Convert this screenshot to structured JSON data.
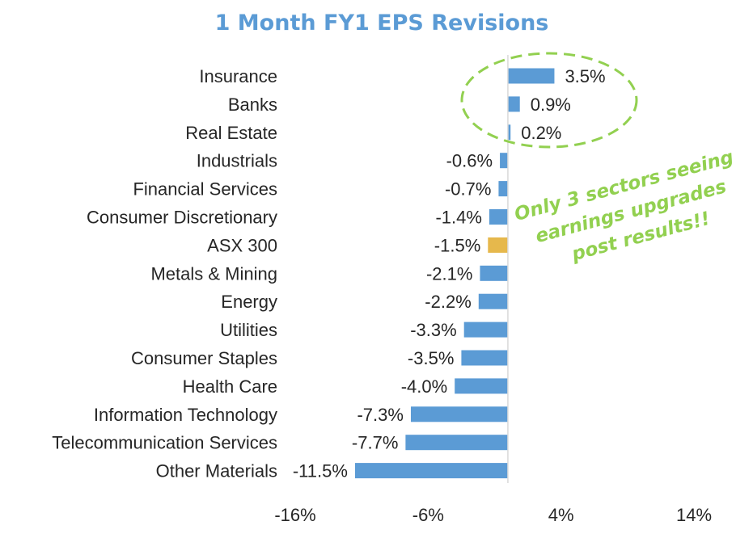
{
  "chart_data": {
    "type": "bar",
    "orientation": "horizontal",
    "title": "1 Month FY1 EPS Revisions",
    "categories": [
      "Insurance",
      "Banks",
      "Real Estate",
      "Industrials",
      "Financial Services",
      "Consumer Discretionary",
      "ASX 300",
      "Metals & Mining",
      "Energy",
      "Utilities",
      "Consumer Staples",
      "Health Care",
      "Information Technology",
      "Telecommunication Services",
      "Other Materials"
    ],
    "values": [
      3.5,
      0.9,
      0.2,
      -0.6,
      -0.7,
      -1.4,
      -1.5,
      -2.1,
      -2.2,
      -3.3,
      -3.5,
      -4.0,
      -7.3,
      -7.7,
      -11.5
    ],
    "data_labels": [
      "3.5%",
      "0.9%",
      "0.2%",
      "-0.6%",
      "-0.7%",
      "-1.4%",
      "-1.5%",
      "-2.1%",
      "-2.2%",
      "-3.3%",
      "-3.5%",
      "-4.0%",
      "-7.3%",
      "-7.7%",
      "-11.5%"
    ],
    "highlight_category": "ASX 300",
    "xlim": [
      -16,
      14
    ],
    "xticks": [
      -16,
      -6,
      4,
      14
    ],
    "xtick_labels": [
      "-16%",
      "-6%",
      "4%",
      "14%"
    ],
    "grid": false,
    "legend": "none",
    "colors": {
      "bar": "#5b9bd5",
      "highlight": "#e6b84c",
      "title": "#5b9bd5",
      "annotation": "#92d050"
    },
    "annotation": {
      "lines": [
        "Only 3 sectors seeing",
        "earnings upgrades",
        "post results!!"
      ]
    }
  }
}
